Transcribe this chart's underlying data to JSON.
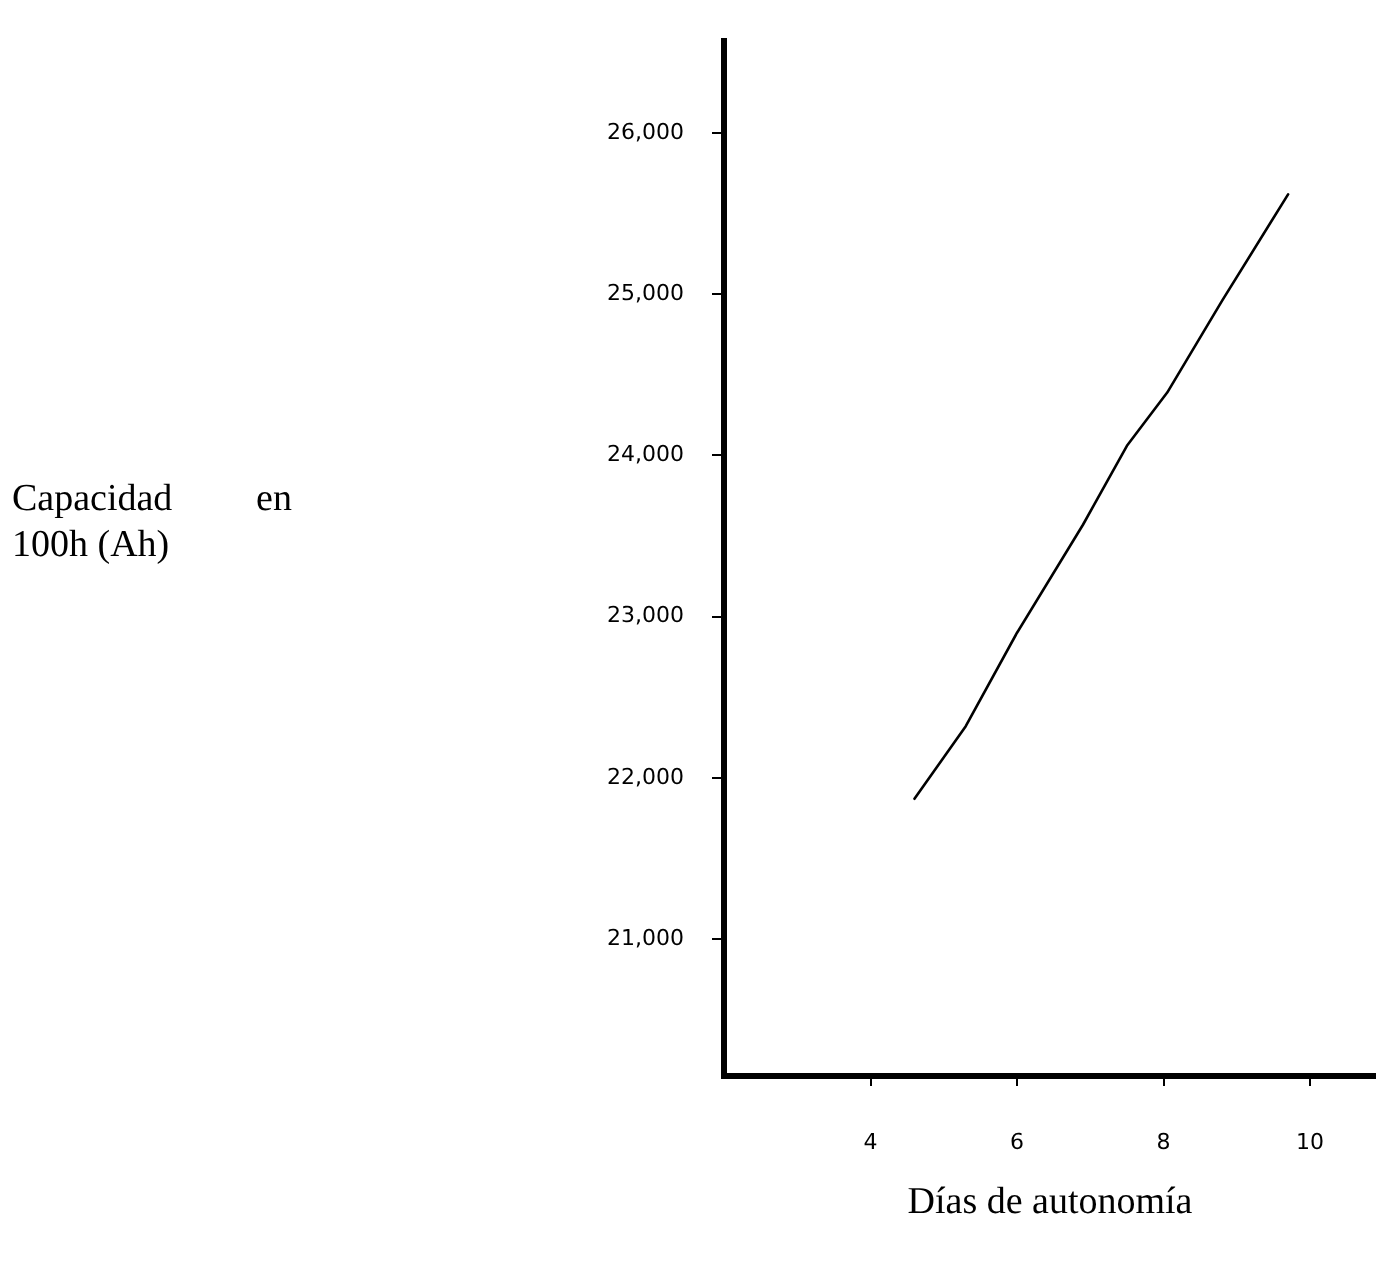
{
  "chart_data": {
    "type": "line",
    "xlabel": "Días de autonomía",
    "annotations": [
      "Capacidad en 100h (Ah)"
    ],
    "x": [
      4.6,
      5.3,
      6.0,
      6.9,
      7.5,
      8.05,
      8.8,
      9.7
    ],
    "series": [
      {
        "color": "#000000",
        "values": [
          21870,
          22320,
          22900,
          23570,
          24060,
          24390,
          24960,
          25620
        ]
      }
    ],
    "xlim": [
      2,
      10.9
    ],
    "xticks": [
      4,
      6,
      8,
      10
    ],
    "ylim": [
      20150,
      26570
    ],
    "yticks": [
      {
        "value": 21000,
        "label": "21,000"
      },
      {
        "value": 22000,
        "label": "22,000"
      },
      {
        "value": 23000,
        "label": "23,000"
      },
      {
        "value": 24000,
        "label": "24,000"
      },
      {
        "value": 25000,
        "label": "25,000"
      },
      {
        "value": 26000,
        "label": "26,000"
      }
    ],
    "grid": false,
    "legend": false,
    "marker": "none",
    "line_style": "solid"
  }
}
